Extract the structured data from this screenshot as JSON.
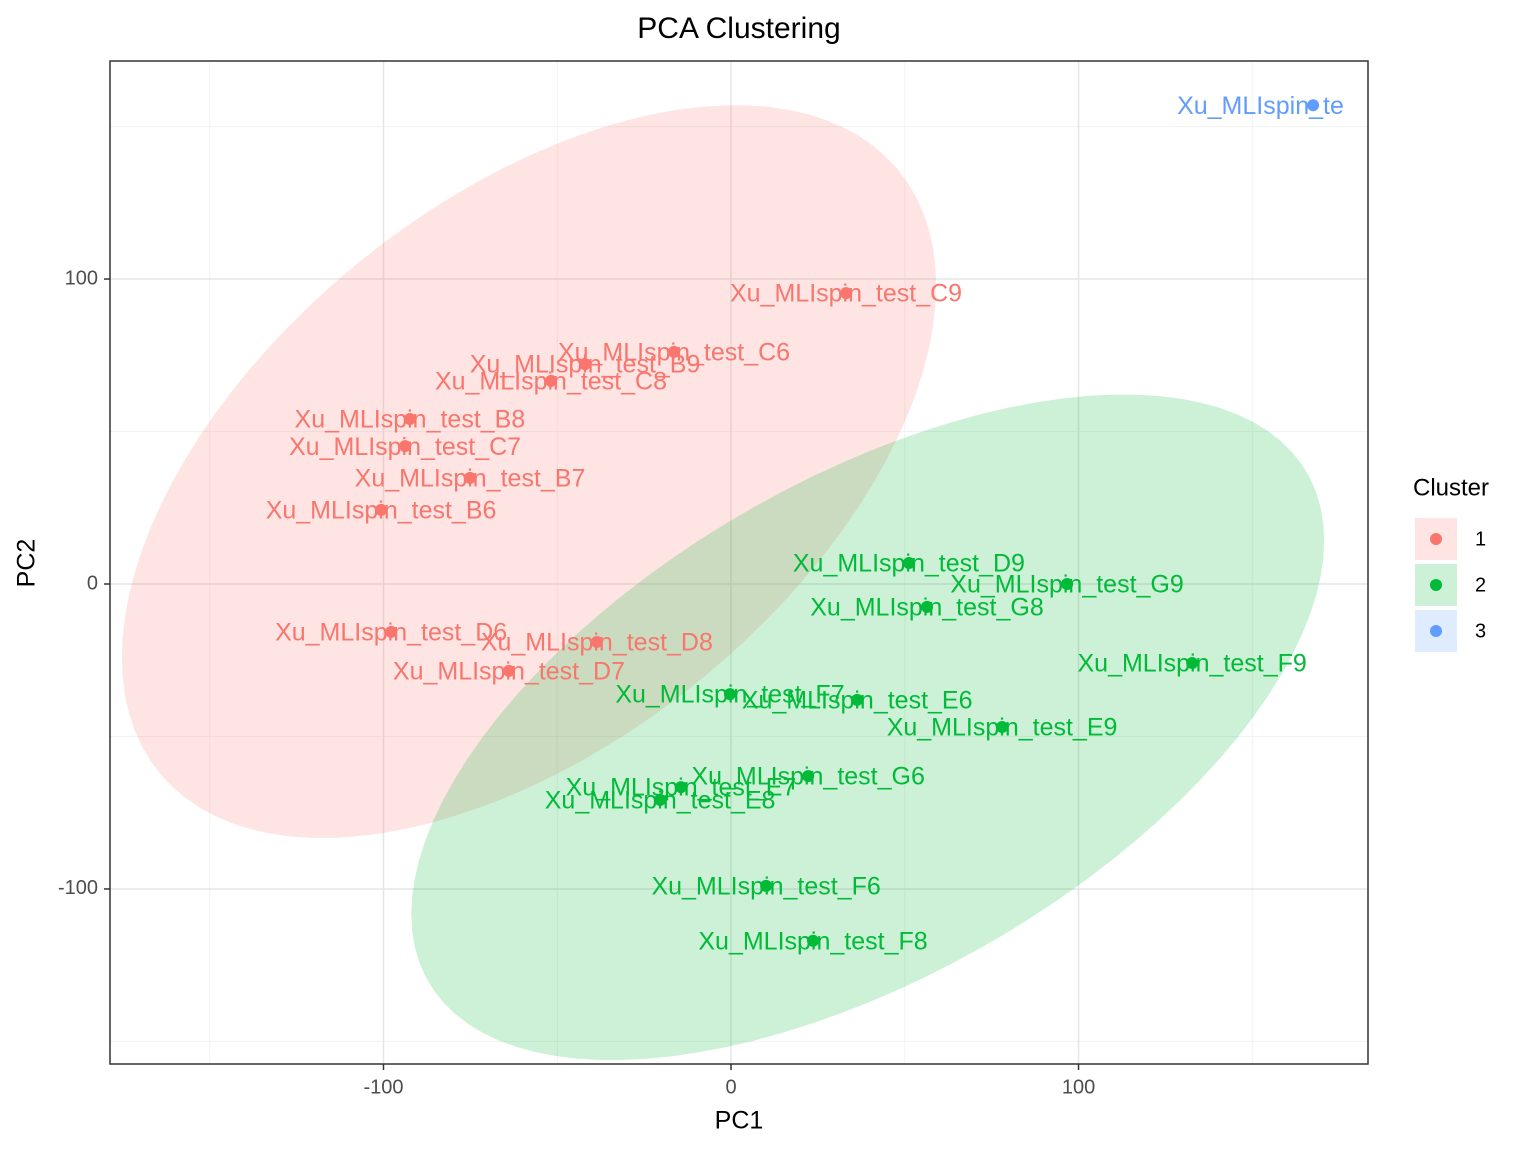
{
  "chart_data": {
    "type": "scatter",
    "title": "PCA Clustering",
    "x_label": "PC1",
    "y_label": "PC2",
    "xlim": [
      -178.7,
      183.3
    ],
    "ylim": [
      -157.4,
      171.5
    ],
    "xticks": [
      -100,
      0,
      100
    ],
    "yticks": [
      -100,
      0,
      100
    ],
    "grid": true,
    "legend_title": "Cluster",
    "legend_position": "right",
    "series": [
      {
        "name": "1",
        "color": "#F8766D",
        "x": [
          33.1,
          -16.4,
          -42.0,
          -51.8,
          -92.4,
          -93.8,
          -75.1,
          -100.7,
          -97.8,
          -38.6,
          -63.9
        ],
        "y": [
          95.4,
          76.1,
          72.1,
          66.6,
          54.1,
          45.2,
          34.8,
          24.3,
          -15.7,
          -19.0,
          -28.5
        ],
        "labels": [
          "Xu_MLIspin_test_C9",
          "Xu_MLIspin_test_C6",
          "Xu_MLIspin_test_B9",
          "Xu_MLIspin_test_C8",
          "Xu_MLIspin_test_B8",
          "Xu_MLIspin_test_C7",
          "Xu_MLIspin_test_B7",
          "Xu_MLIspin_test_B6",
          "Xu_MLIspin_test_D6",
          "Xu_MLIspin_test_D8",
          "Xu_MLIspin_test_D7"
        ]
      },
      {
        "name": "2",
        "color": "#00BA38",
        "x": [
          51.2,
          96.7,
          56.4,
          132.7,
          -0.3,
          36.3,
          78.0,
          22.2,
          -14.4,
          -20.4,
          10.1,
          23.6
        ],
        "y": [
          6.9,
          0.0,
          -7.5,
          -25.9,
          -36.1,
          -38.0,
          -46.9,
          -63.0,
          -66.6,
          -70.8,
          -99.0,
          -117.0
        ],
        "labels": [
          "Xu_MLIspin_test_D9",
          "Xu_MLIspin_test_G9",
          "Xu_MLIspin_test_G8",
          "Xu_MLIspin_test_F9",
          "Xu_MLIspin_test_F7",
          "Xu_MLIspin_test_E6",
          "Xu_MLIspin_test_E9",
          "Xu_MLIspin_test_G6",
          "Xu_MLIspin_test_E7",
          "Xu_MLIspin_test_E8",
          "Xu_MLIspin_test_F6",
          "Xu_MLIspin_test_F8"
        ]
      },
      {
        "name": "3",
        "color": "#619CFF",
        "x": [
          167.5
        ],
        "y": [
          157.0
        ],
        "labels": [
          "Xu_MLIspin_te"
        ]
      }
    ]
  }
}
